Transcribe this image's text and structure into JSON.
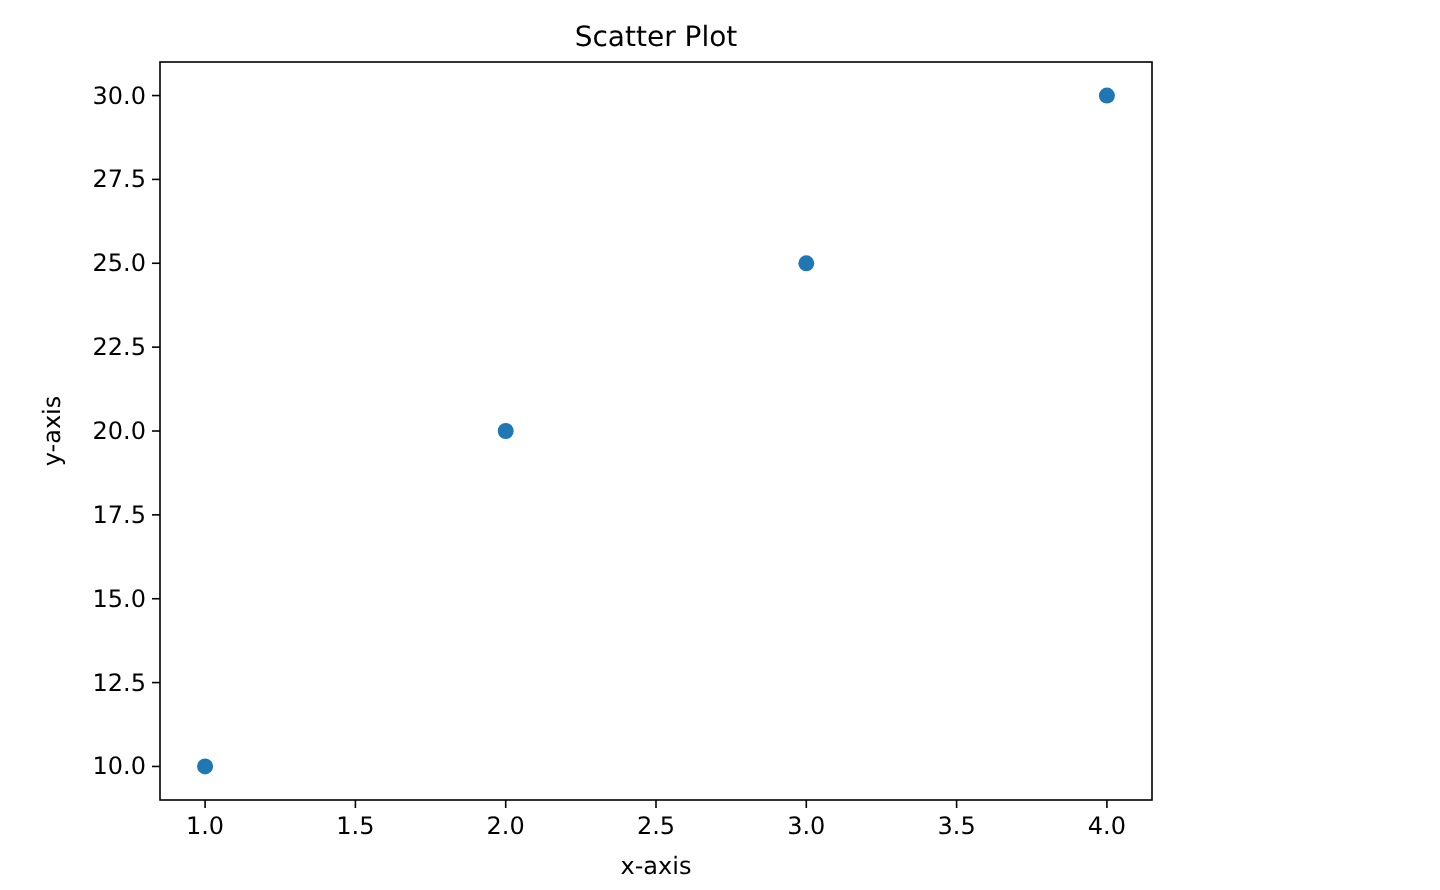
{
  "chart_data": {
    "type": "scatter",
    "title": "Scatter Plot",
    "xlabel": "x-axis",
    "ylabel": "y-axis",
    "x": [
      1,
      2,
      3,
      4
    ],
    "series": [
      {
        "color": "#1f77b4",
        "values": [
          10,
          20,
          25,
          30
        ]
      }
    ],
    "xlim": [
      0.85,
      4.15
    ],
    "xticks": [
      {
        "value": 1,
        "label": "1.0"
      },
      {
        "value": 1.5,
        "label": "1.5"
      },
      {
        "value": 2,
        "label": "2.0"
      },
      {
        "value": 2.5,
        "label": "2.5"
      },
      {
        "value": 3,
        "label": "3.0"
      },
      {
        "value": 3.5,
        "label": "3.5"
      },
      {
        "value": 4,
        "label": "4.0"
      }
    ],
    "ylim": [
      9,
      31
    ],
    "yticks": [
      {
        "value": 10,
        "label": "10.0"
      },
      {
        "value": 12.5,
        "label": "12.5"
      },
      {
        "value": 15,
        "label": "15.0"
      },
      {
        "value": 17.5,
        "label": "17.5"
      },
      {
        "value": 20,
        "label": "20.0"
      },
      {
        "value": 22.5,
        "label": "22.5"
      },
      {
        "value": 25,
        "label": "25.0"
      },
      {
        "value": 27.5,
        "label": "27.5"
      },
      {
        "value": 30,
        "label": "30.0"
      }
    ],
    "marker": "circle"
  }
}
